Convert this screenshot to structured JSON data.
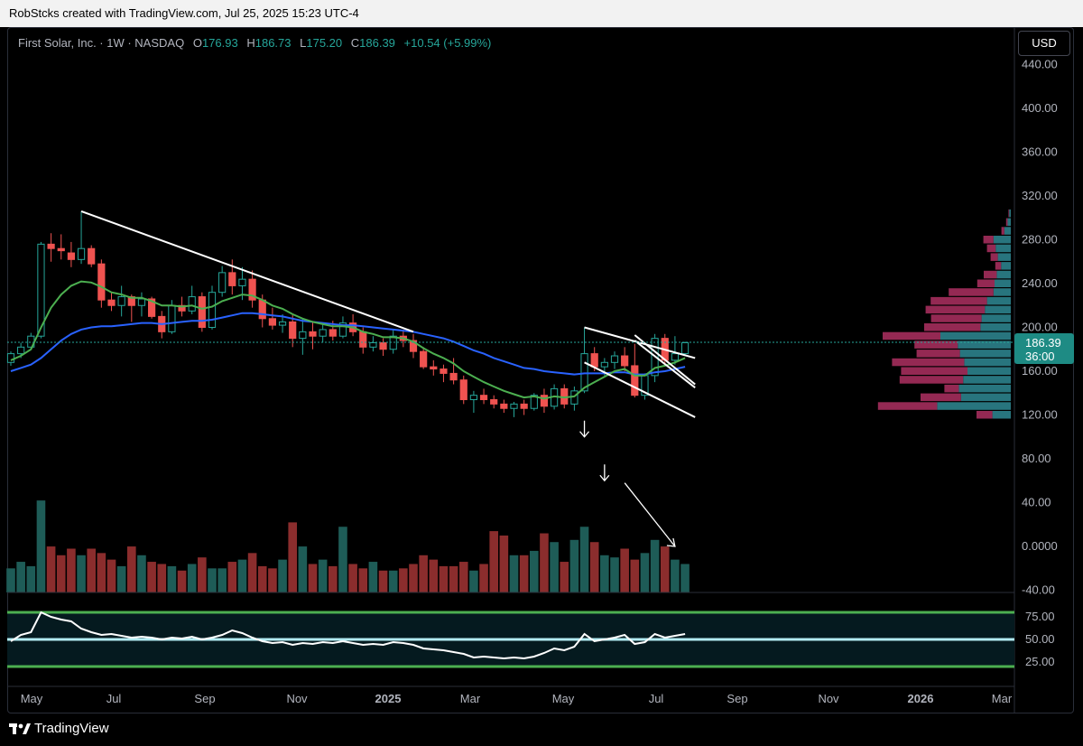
{
  "header": {
    "attribution": "RobStcks created with TradingView.com, Jul 25, 2025 15:23 UTC-4"
  },
  "legend": {
    "symbol": "First Solar, Inc. · 1W · NASDAQ",
    "open_label": "O",
    "open": "176.93",
    "high_label": "H",
    "high": "186.73",
    "low_label": "L",
    "low": "175.20",
    "close_label": "C",
    "close": "186.39",
    "change": "+10.54 (+5.99%)"
  },
  "currency_button": "USD",
  "price_badge": {
    "price": "186.39",
    "countdown": "36:00"
  },
  "footer": {
    "brand": "TradingView"
  },
  "colors": {
    "up": "#26a69a",
    "down": "#ef5350",
    "ema_fast": "#4caf50",
    "ema_slow": "#2962ff",
    "vol_up": "#1e5c57",
    "vol_down": "#8b2d2d",
    "rsi": "#ffffff",
    "rsi_mid": "#b2ebf2",
    "rsi_band": "#4caf50"
  },
  "chart_data": {
    "type": "candlestick",
    "interval": "1W",
    "x_axis_ticks": [
      "May",
      "Jul",
      "Sep",
      "Nov",
      "2025",
      "Mar",
      "May",
      "Jul",
      "Sep",
      "Nov",
      "2026",
      "Mar"
    ],
    "y_axis_ticks": [
      "440.00",
      "400.00",
      "360.00",
      "320.00",
      "280.00",
      "240.00",
      "200.00",
      "160.00",
      "120.00",
      "80.00",
      "40.00",
      "0.0000",
      "-40.00"
    ],
    "price_range": [
      -40,
      460
    ],
    "candles": [
      [
        168,
        178,
        165,
        176
      ],
      [
        176,
        186,
        172,
        182
      ],
      [
        182,
        195,
        180,
        192
      ],
      [
        192,
        278,
        190,
        276
      ],
      [
        276,
        286,
        260,
        272
      ],
      [
        272,
        285,
        262,
        270
      ],
      [
        268,
        278,
        255,
        262
      ],
      [
        262,
        306,
        258,
        272
      ],
      [
        272,
        275,
        255,
        258
      ],
      [
        258,
        262,
        218,
        225
      ],
      [
        225,
        232,
        215,
        220
      ],
      [
        220,
        238,
        210,
        228
      ],
      [
        228,
        230,
        205,
        220
      ],
      [
        220,
        232,
        210,
        226
      ],
      [
        226,
        228,
        208,
        210
      ],
      [
        210,
        215,
        190,
        196
      ],
      [
        196,
        225,
        194,
        220
      ],
      [
        220,
        228,
        210,
        215
      ],
      [
        215,
        238,
        212,
        228
      ],
      [
        228,
        232,
        196,
        200
      ],
      [
        200,
        238,
        198,
        232
      ],
      [
        232,
        256,
        228,
        250
      ],
      [
        250,
        262,
        230,
        238
      ],
      [
        238,
        255,
        225,
        244
      ],
      [
        244,
        252,
        218,
        225
      ],
      [
        225,
        230,
        200,
        208
      ],
      [
        208,
        218,
        198,
        202
      ],
      [
        202,
        212,
        195,
        205
      ],
      [
        205,
        212,
        182,
        190
      ],
      [
        190,
        208,
        175,
        196
      ],
      [
        196,
        205,
        180,
        192
      ],
      [
        192,
        204,
        186,
        198
      ],
      [
        198,
        206,
        188,
        192
      ],
      [
        192,
        210,
        190,
        204
      ],
      [
        204,
        212,
        192,
        196
      ],
      [
        196,
        200,
        176,
        182
      ],
      [
        182,
        192,
        178,
        186
      ],
      [
        186,
        190,
        174,
        180
      ],
      [
        180,
        198,
        176,
        192
      ],
      [
        192,
        198,
        182,
        188
      ],
      [
        188,
        194,
        172,
        178
      ],
      [
        178,
        182,
        162,
        164
      ],
      [
        164,
        170,
        156,
        162
      ],
      [
        162,
        166,
        150,
        158
      ],
      [
        158,
        172,
        148,
        152
      ],
      [
        152,
        156,
        130,
        134
      ],
      [
        134,
        142,
        122,
        138
      ],
      [
        138,
        144,
        130,
        134
      ],
      [
        134,
        138,
        126,
        130
      ],
      [
        130,
        134,
        122,
        126
      ],
      [
        126,
        132,
        118,
        130
      ],
      [
        130,
        134,
        120,
        126
      ],
      [
        126,
        140,
        124,
        138
      ],
      [
        138,
        144,
        122,
        128
      ],
      [
        128,
        148,
        125,
        144
      ],
      [
        144,
        148,
        126,
        130
      ],
      [
        130,
        146,
        124,
        142
      ],
      [
        142,
        200,
        140,
        176
      ],
      [
        176,
        182,
        160,
        164
      ],
      [
        164,
        172,
        156,
        168
      ],
      [
        168,
        178,
        162,
        174
      ],
      [
        174,
        182,
        160,
        165
      ],
      [
        165,
        185,
        136,
        138
      ],
      [
        138,
        158,
        134,
        156
      ],
      [
        156,
        194,
        150,
        190
      ],
      [
        190,
        194,
        166,
        170
      ],
      [
        170,
        192,
        166,
        176
      ],
      [
        176,
        187,
        175,
        186
      ]
    ],
    "ema_fast": [
      170,
      174,
      180,
      200,
      218,
      230,
      238,
      242,
      241,
      237,
      232,
      230,
      227,
      227,
      224,
      220,
      220,
      219,
      220,
      217,
      219,
      224,
      227,
      230,
      229,
      225,
      220,
      217,
      212,
      208,
      205,
      203,
      201,
      201,
      200,
      196,
      194,
      191,
      191,
      190,
      187,
      181,
      176,
      172,
      167,
      160,
      155,
      150,
      146,
      142,
      139,
      136,
      137,
      135,
      137,
      136,
      137,
      145,
      150,
      155,
      160,
      162,
      156,
      156,
      163,
      165,
      168,
      172
    ],
    "ema_slow": [
      160,
      163,
      166,
      172,
      180,
      188,
      194,
      198,
      200,
      201,
      201,
      202,
      203,
      204,
      204,
      203,
      204,
      205,
      206,
      206,
      207,
      209,
      211,
      213,
      213,
      212,
      211,
      210,
      208,
      206,
      205,
      204,
      203,
      202,
      202,
      201,
      200,
      199,
      198,
      197,
      196,
      194,
      192,
      190,
      187,
      183,
      179,
      176,
      172,
      169,
      166,
      163,
      162,
      160,
      159,
      158,
      157,
      158,
      158,
      158,
      159,
      159,
      157,
      157,
      159,
      160,
      162,
      164
    ],
    "volume": [
      22,
      28,
      24,
      84,
      42,
      34,
      40,
      34,
      40,
      36,
      30,
      24,
      42,
      34,
      28,
      26,
      24,
      20,
      26,
      32,
      22,
      22,
      28,
      30,
      36,
      24,
      22,
      30,
      64,
      42,
      26,
      30,
      24,
      60,
      26,
      22,
      28,
      20,
      20,
      22,
      26,
      34,
      30,
      24,
      24,
      28,
      20,
      26,
      56,
      52,
      34,
      34,
      38,
      54,
      46,
      28,
      48,
      60,
      46,
      34,
      32,
      40,
      30,
      36,
      48,
      42,
      30,
      26
    ],
    "rsi": {
      "ticks": [
        "75.00",
        "50.00",
        "25.00"
      ],
      "levels": [
        80,
        50,
        20
      ],
      "values": [
        48,
        55,
        58,
        80,
        75,
        72,
        70,
        62,
        58,
        55,
        56,
        54,
        52,
        53,
        52,
        50,
        52,
        51,
        53,
        50,
        52,
        55,
        60,
        57,
        52,
        48,
        46,
        47,
        44,
        46,
        45,
        47,
        46,
        48,
        46,
        44,
        45,
        44,
        47,
        46,
        44,
        40,
        39,
        38,
        36,
        34,
        30,
        31,
        30,
        29,
        30,
        29,
        31,
        35,
        40,
        38,
        42,
        56,
        48,
        50,
        52,
        55,
        45,
        47,
        56,
        52,
        54,
        56
      ]
    },
    "price_levels": {
      "last_close": 186.39
    },
    "volume_profile": [
      {
        "price": 304,
        "up": 3,
        "down": 1
      },
      {
        "price": 296,
        "up": 6,
        "down": 2
      },
      {
        "price": 288,
        "up": 12,
        "down": 4
      },
      {
        "price": 280,
        "up": 32,
        "down": 14
      },
      {
        "price": 272,
        "up": 28,
        "down": 12
      },
      {
        "price": 264,
        "up": 24,
        "down": 10
      },
      {
        "price": 256,
        "up": 18,
        "down": 8
      },
      {
        "price": 248,
        "up": 26,
        "down": 18
      },
      {
        "price": 240,
        "up": 30,
        "down": 24
      },
      {
        "price": 232,
        "up": 32,
        "down": 62
      },
      {
        "price": 224,
        "up": 44,
        "down": 78
      },
      {
        "price": 216,
        "up": 48,
        "down": 82
      },
      {
        "price": 208,
        "up": 54,
        "down": 70
      },
      {
        "price": 200,
        "up": 56,
        "down": 78
      },
      {
        "price": 192,
        "up": 130,
        "down": 80
      },
      {
        "price": 184,
        "up": 98,
        "down": 60
      },
      {
        "price": 176,
        "up": 94,
        "down": 60
      },
      {
        "price": 168,
        "up": 86,
        "down": 100
      },
      {
        "price": 160,
        "up": 80,
        "down": 92
      },
      {
        "price": 152,
        "up": 88,
        "down": 88
      },
      {
        "price": 144,
        "up": 96,
        "down": 20
      },
      {
        "price": 136,
        "up": 92,
        "down": 56
      },
      {
        "price": 128,
        "up": 136,
        "down": 82
      },
      {
        "price": 120,
        "up": 34,
        "down": 22
      }
    ],
    "trendlines": [
      {
        "from": [
          7,
          306
        ],
        "to": [
          40,
          196
        ]
      },
      {
        "from": [
          57,
          200
        ],
        "to": [
          68,
          172
        ]
      },
      {
        "from": [
          57,
          168
        ],
        "to": [
          68,
          118
        ]
      },
      {
        "from": [
          62,
          193
        ],
        "to": [
          68,
          148
        ]
      },
      {
        "from": [
          62,
          188
        ],
        "to": [
          68,
          145
        ]
      }
    ],
    "annotations": [
      {
        "type": "arrow-down",
        "at": 57,
        "value": 100
      },
      {
        "type": "arrow-down",
        "at": 59,
        "value": 60
      },
      {
        "type": "arrow-diagonal",
        "from": [
          61,
          58
        ],
        "to": [
          66,
          0
        ]
      }
    ]
  }
}
